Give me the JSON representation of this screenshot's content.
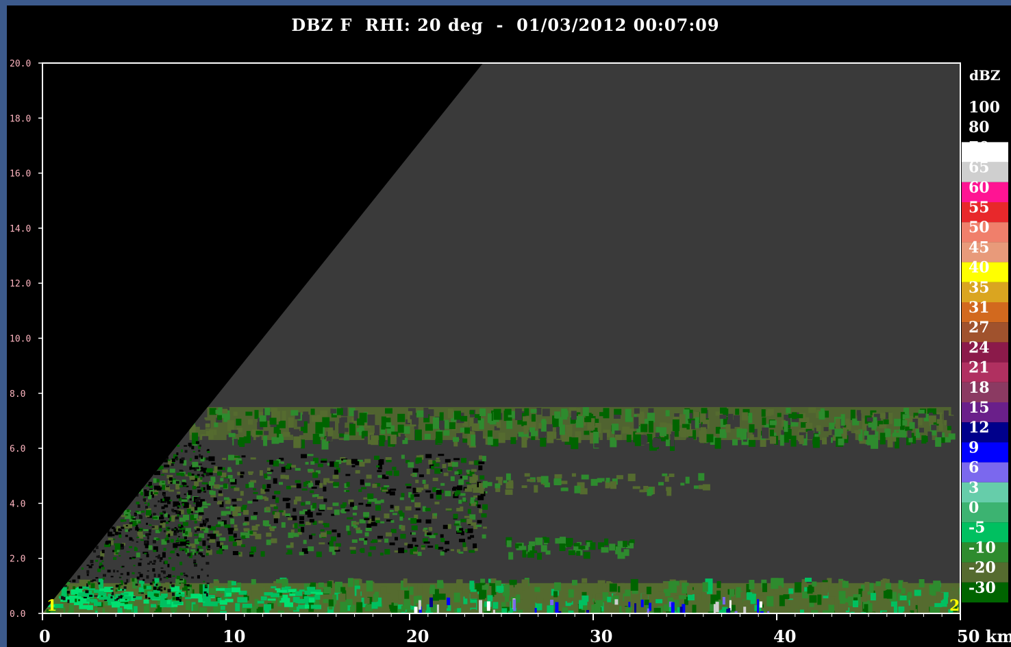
{
  "chart_data": {
    "type": "heatmap",
    "title": "DBZ F  RHI: 20 deg  -  01/03/2012 00:07:09",
    "xlabel": "km",
    "ylabel": "",
    "xlim": [
      0,
      50
    ],
    "ylim": [
      0,
      20
    ],
    "x_ticks": [
      "0",
      "10",
      "20",
      "30",
      "40",
      "50 km"
    ],
    "y_ticks": [
      "0.0",
      "2.0",
      "4.0",
      "6.0",
      "8.0",
      "10.0",
      "12.0",
      "14.0",
      "16.0",
      "18.0",
      "20.0"
    ],
    "markers": [
      "1",
      "2"
    ],
    "scan_edge": {
      "description": "radar beam top edge",
      "points_km": [
        [
          0,
          0
        ],
        [
          24,
          20
        ]
      ]
    },
    "echo_layers": [
      {
        "x_range_km": [
          8,
          49.5
        ],
        "z_range_km": [
          6.3,
          7.5
        ],
        "class": "-20 to -10 dBZ"
      },
      {
        "x_range_km": [
          3,
          24
        ],
        "z_range_km": [
          2.2,
          5.8
        ],
        "class": "-30 to -5 dBZ"
      },
      {
        "x_range_km": [
          0,
          50
        ],
        "z_range_km": [
          0,
          1.3
        ],
        "class": "-30 to 0 dBZ"
      }
    ],
    "colorbar": {
      "unit": "dBZ",
      "levels": [
        "100",
        "80",
        "70",
        "65",
        "60",
        "55",
        "50",
        "45",
        "40",
        "35",
        "31",
        "27",
        "24",
        "21",
        "18",
        "15",
        "12",
        "9",
        "6",
        "3",
        "0",
        "-5",
        "-10",
        "-20",
        "-30"
      ],
      "colors": [
        "#000000",
        "#000000",
        "#ffffff",
        "#cfcfcf",
        "#ff1493",
        "#e8282b",
        "#f07f6b",
        "#e89a7a",
        "#ffff00",
        "#daa520",
        "#d2691e",
        "#a0522d",
        "#8b1a4a",
        "#b03060",
        "#8b3a62",
        "#6a1f8a",
        "#00008b",
        "#0000ff",
        "#7b68ee",
        "#66cdaa",
        "#3cb371",
        "#00c060",
        "#2e8b2e",
        "#556b2f",
        "#006400"
      ]
    }
  },
  "colors": {
    "background_blue": "#3c5a8c",
    "plot_bg": "#000000",
    "no_echo_gray": "#3a3a3a",
    "echo_olive": "#556b2f",
    "echo_green": "#2e8b2e",
    "echo_dark_green": "#006400",
    "echo_bright_green": "#00c060"
  }
}
